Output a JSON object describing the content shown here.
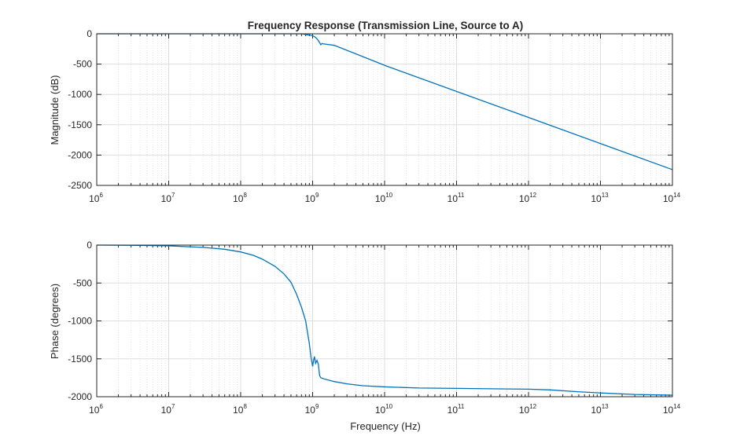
{
  "chart_data": [
    {
      "type": "line",
      "title": "Frequency Response (Transmission Line, Source to A)",
      "xlabel": "",
      "ylabel": "Magnitude (dB)",
      "xscale": "log",
      "xlim": [
        1000000,
        100000000000000
      ],
      "ylim": [
        -2500,
        0
      ],
      "yticks": [
        0,
        -500,
        -1000,
        -1500,
        -2000,
        -2500
      ],
      "xticks_exp": [
        6,
        7,
        8,
        9,
        10,
        11,
        12,
        13,
        14
      ],
      "grid": true,
      "x": [
        1000000,
        10000000,
        100000000,
        700000000,
        1000000000,
        1100000000,
        1200000000,
        1300000000,
        1350000000,
        1400000000,
        1600000000,
        2000000000,
        10000000000,
        100000000000,
        1000000000000,
        10000000000000,
        100000000000000
      ],
      "y": [
        0,
        0,
        0,
        0,
        -30,
        -60,
        -110,
        -180,
        -160,
        -165,
        -175,
        -190,
        -520,
        -950,
        -1380,
        -1810,
        -2240
      ]
    },
    {
      "type": "line",
      "title": "",
      "xlabel": "Frequency (Hz)",
      "ylabel": "Phase (degrees)",
      "xscale": "log",
      "xlim": [
        1000000,
        100000000000000
      ],
      "ylim": [
        -2000,
        0
      ],
      "yticks": [
        0,
        -500,
        -1000,
        -1500,
        -2000
      ],
      "xticks_exp": [
        6,
        7,
        8,
        9,
        10,
        11,
        12,
        13,
        14
      ],
      "grid": true,
      "x": [
        1000000,
        3000000,
        10000000,
        30000000,
        60000000,
        100000000,
        150000000,
        200000000,
        300000000,
        400000000,
        500000000,
        600000000,
        700000000,
        800000000,
        900000000,
        950000000,
        1000000000,
        1030000000,
        1060000000,
        1100000000,
        1150000000,
        1200000000,
        1250000000,
        1300000000,
        1500000000,
        2000000000,
        3000000000,
        5000000000,
        10000000000,
        30000000000,
        100000000000,
        300000000000,
        1000000000000,
        2000000000000,
        5000000000000,
        10000000000000,
        30000000000000,
        100000000000000
      ],
      "y": [
        0,
        -2,
        -10,
        -30,
        -55,
        -90,
        -135,
        -185,
        -280,
        -380,
        -490,
        -650,
        -820,
        -1000,
        -1300,
        -1480,
        -1600,
        -1520,
        -1470,
        -1560,
        -1520,
        -1570,
        -1720,
        -1750,
        -1770,
        -1800,
        -1830,
        -1855,
        -1870,
        -1885,
        -1890,
        -1895,
        -1900,
        -1910,
        -1935,
        -1950,
        -1970,
        -1980
      ]
    }
  ]
}
